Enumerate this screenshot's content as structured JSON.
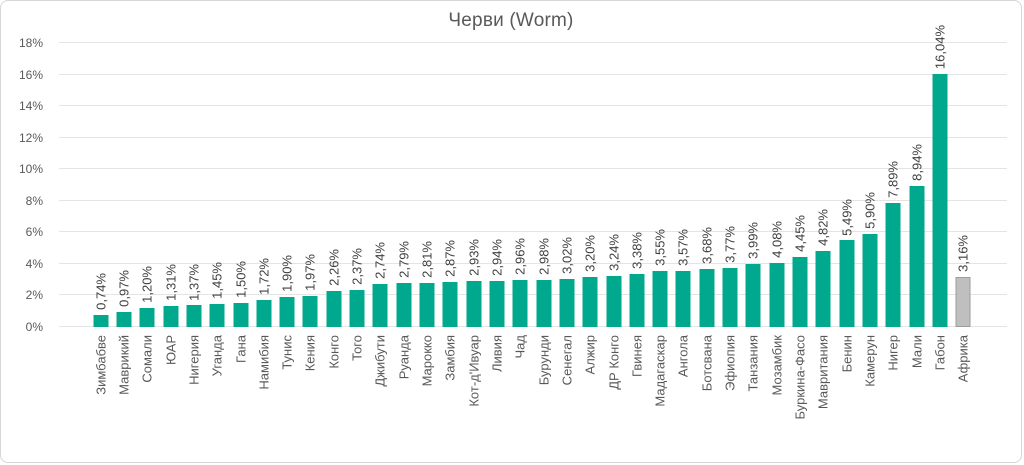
{
  "title": "Черви (Worm)",
  "chart_data": {
    "type": "bar",
    "title": "Черви (Worm)",
    "categories": [
      "Зимбабве",
      "Маврикий",
      "Сомали",
      "ЮАР",
      "Нигерия",
      "Уганда",
      "Гана",
      "Намибия",
      "Тунис",
      "Кения",
      "Конго",
      "Того",
      "Джибути",
      "Руанда",
      "Марокко",
      "Замбия",
      "Кот-д'Ивуар",
      "Ливия",
      "Чад",
      "Бурунди",
      "Сенегал",
      "Алжир",
      "ДР Конго",
      "Гвинея",
      "Мадагаскар",
      "Ангола",
      "Ботсвана",
      "Эфиопия",
      "Танзания",
      "Мозамбик",
      "Буркина-Фасо",
      "Мавритания",
      "Бенин",
      "Камерун",
      "Нигер",
      "Мали",
      "Габон",
      "Африка"
    ],
    "values": [
      0.74,
      0.97,
      1.2,
      1.31,
      1.37,
      1.45,
      1.5,
      1.72,
      1.9,
      1.97,
      2.26,
      2.37,
      2.74,
      2.79,
      2.81,
      2.87,
      2.93,
      2.94,
      2.96,
      2.98,
      3.02,
      3.2,
      3.24,
      3.38,
      3.55,
      3.57,
      3.68,
      3.77,
      3.99,
      4.08,
      4.45,
      4.82,
      5.49,
      5.9,
      7.89,
      8.94,
      16.04,
      3.16
    ],
    "value_labels": [
      "0,74%",
      "0,97%",
      "1,20%",
      "1,31%",
      "1,37%",
      "1,45%",
      "1,50%",
      "1,72%",
      "1,90%",
      "1,97%",
      "2,26%",
      "2,37%",
      "2,74%",
      "2,79%",
      "2,81%",
      "2,87%",
      "2,93%",
      "2,94%",
      "2,96%",
      "2,98%",
      "3,02%",
      "3,20%",
      "3,24%",
      "3,38%",
      "3,55%",
      "3,57%",
      "3,68%",
      "3,77%",
      "3,99%",
      "4,08%",
      "4,45%",
      "4,82%",
      "5,49%",
      "5,90%",
      "7,89%",
      "8,94%",
      "16,04%",
      "3,16%"
    ],
    "xlabel": "",
    "ylabel": "",
    "ylim": [
      0,
      18
    ],
    "ytick_step": 2,
    "ytick_labels": [
      "0%",
      "2%",
      "4%",
      "6%",
      "8%",
      "10%",
      "12%",
      "14%",
      "16%",
      "18%"
    ],
    "grid": true,
    "legend": "none",
    "bar_color": "#00A88E",
    "highlight_category": "Африка",
    "highlight_color": "#BFBFBF",
    "highlight_border": "#9C9C9C",
    "label_rotation_deg": 90
  }
}
